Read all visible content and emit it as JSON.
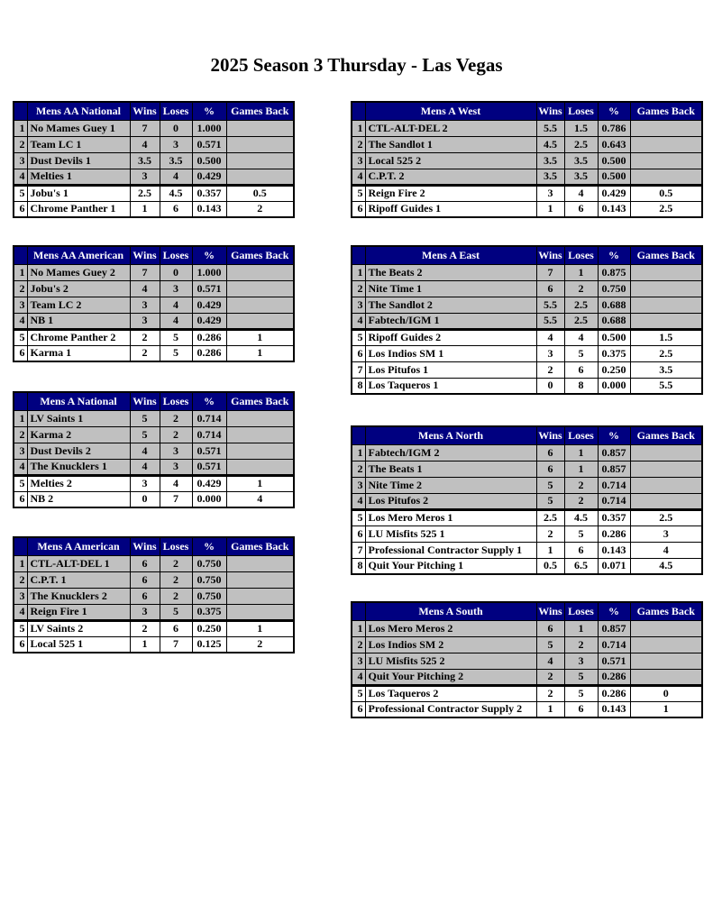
{
  "page": {
    "title": "2025 Season 3 Thursday - Las Vegas"
  },
  "colors": {
    "header_bg": "#000080",
    "header_text": "#FFFFFF",
    "shaded_row": "#C0C0C0",
    "unshaded_row": "#FFFFFF",
    "border": "#000000"
  },
  "columns": [
    "Wins",
    "Loses",
    "%",
    "Games Back"
  ],
  "tables": [
    {
      "name": "Mens AA National",
      "rows": [
        {
          "rank": 1,
          "team": "No Mames Guey 1",
          "wins": "7",
          "loses": "0",
          "pct": "1.000",
          "games_back": ""
        },
        {
          "rank": 2,
          "team": "Team LC 1",
          "wins": "4",
          "loses": "3",
          "pct": "0.571",
          "games_back": ""
        },
        {
          "rank": 3,
          "team": "Dust Devils 1",
          "wins": "3.5",
          "loses": "3.5",
          "pct": "0.500",
          "games_back": ""
        },
        {
          "rank": 4,
          "team": "Melties 1",
          "wins": "3",
          "loses": "4",
          "pct": "0.429",
          "games_back": ""
        },
        {
          "rank": 5,
          "team": "Jobu's 1",
          "wins": "2.5",
          "loses": "4.5",
          "pct": "0.357",
          "games_back": "0.5"
        },
        {
          "rank": 6,
          "team": "Chrome Panther 1",
          "wins": "1",
          "loses": "6",
          "pct": "0.143",
          "games_back": "2"
        }
      ]
    },
    {
      "name": "Mens AA American",
      "rows": [
        {
          "rank": 1,
          "team": "No Mames Guey 2",
          "wins": "7",
          "loses": "0",
          "pct": "1.000",
          "games_back": ""
        },
        {
          "rank": 2,
          "team": "Jobu's 2",
          "wins": "4",
          "loses": "3",
          "pct": "0.571",
          "games_back": ""
        },
        {
          "rank": 3,
          "team": "Team LC 2",
          "wins": "3",
          "loses": "4",
          "pct": "0.429",
          "games_back": ""
        },
        {
          "rank": 4,
          "team": "NB 1",
          "wins": "3",
          "loses": "4",
          "pct": "0.429",
          "games_back": ""
        },
        {
          "rank": 5,
          "team": "Chrome Panther 2",
          "wins": "2",
          "loses": "5",
          "pct": "0.286",
          "games_back": "1"
        },
        {
          "rank": 6,
          "team": "Karma 1",
          "wins": "2",
          "loses": "5",
          "pct": "0.286",
          "games_back": "1"
        }
      ]
    },
    {
      "name": "Mens A National",
      "rows": [
        {
          "rank": 1,
          "team": "LV Saints 1",
          "wins": "5",
          "loses": "2",
          "pct": "0.714",
          "games_back": ""
        },
        {
          "rank": 2,
          "team": "Karma 2",
          "wins": "5",
          "loses": "2",
          "pct": "0.714",
          "games_back": ""
        },
        {
          "rank": 3,
          "team": "Dust Devils 2",
          "wins": "4",
          "loses": "3",
          "pct": "0.571",
          "games_back": ""
        },
        {
          "rank": 4,
          "team": "The Knucklers 1",
          "wins": "4",
          "loses": "3",
          "pct": "0.571",
          "games_back": ""
        },
        {
          "rank": 5,
          "team": "Melties 2",
          "wins": "3",
          "loses": "4",
          "pct": "0.429",
          "games_back": "1"
        },
        {
          "rank": 6,
          "team": "NB 2",
          "wins": "0",
          "loses": "7",
          "pct": "0.000",
          "games_back": "4"
        }
      ]
    },
    {
      "name": "Mens A American",
      "rows": [
        {
          "rank": 1,
          "team": "CTL-ALT-DEL 1",
          "wins": "6",
          "loses": "2",
          "pct": "0.750",
          "games_back": ""
        },
        {
          "rank": 2,
          "team": "C.P.T. 1",
          "wins": "6",
          "loses": "2",
          "pct": "0.750",
          "games_back": ""
        },
        {
          "rank": 3,
          "team": "The Knucklers 2",
          "wins": "6",
          "loses": "2",
          "pct": "0.750",
          "games_back": ""
        },
        {
          "rank": 4,
          "team": "Reign Fire 1",
          "wins": "3",
          "loses": "5",
          "pct": "0.375",
          "games_back": ""
        },
        {
          "rank": 5,
          "team": "LV Saints 2",
          "wins": "2",
          "loses": "6",
          "pct": "0.250",
          "games_back": "1"
        },
        {
          "rank": 6,
          "team": "Local 525 1",
          "wins": "1",
          "loses": "7",
          "pct": "0.125",
          "games_back": "2"
        }
      ]
    },
    {
      "name": "Mens A West",
      "rows": [
        {
          "rank": 1,
          "team": "CTL-ALT-DEL 2",
          "wins": "5.5",
          "loses": "1.5",
          "pct": "0.786",
          "games_back": ""
        },
        {
          "rank": 2,
          "team": "The Sandlot 1",
          "wins": "4.5",
          "loses": "2.5",
          "pct": "0.643",
          "games_back": ""
        },
        {
          "rank": 3,
          "team": "Local 525 2",
          "wins": "3.5",
          "loses": "3.5",
          "pct": "0.500",
          "games_back": ""
        },
        {
          "rank": 4,
          "team": "C.P.T. 2",
          "wins": "3.5",
          "loses": "3.5",
          "pct": "0.500",
          "games_back": ""
        },
        {
          "rank": 5,
          "team": "Reign Fire 2",
          "wins": "3",
          "loses": "4",
          "pct": "0.429",
          "games_back": "0.5"
        },
        {
          "rank": 6,
          "team": "Ripoff Guides 1",
          "wins": "1",
          "loses": "6",
          "pct": "0.143",
          "games_back": "2.5"
        }
      ]
    },
    {
      "name": "Mens A East",
      "rows": [
        {
          "rank": 1,
          "team": "The Beats 2",
          "wins": "7",
          "loses": "1",
          "pct": "0.875",
          "games_back": ""
        },
        {
          "rank": 2,
          "team": "Nite Time 1",
          "wins": "6",
          "loses": "2",
          "pct": "0.750",
          "games_back": ""
        },
        {
          "rank": 3,
          "team": "The Sandlot 2",
          "wins": "5.5",
          "loses": "2.5",
          "pct": "0.688",
          "games_back": ""
        },
        {
          "rank": 4,
          "team": "Fabtech/IGM 1",
          "wins": "5.5",
          "loses": "2.5",
          "pct": "0.688",
          "games_back": ""
        },
        {
          "rank": 5,
          "team": "Ripoff Guides 2",
          "wins": "4",
          "loses": "4",
          "pct": "0.500",
          "games_back": "1.5"
        },
        {
          "rank": 6,
          "team": "Los Indios SM 1",
          "wins": "3",
          "loses": "5",
          "pct": "0.375",
          "games_back": "2.5"
        },
        {
          "rank": 7,
          "team": "Los Pitufos 1",
          "wins": "2",
          "loses": "6",
          "pct": "0.250",
          "games_back": "3.5"
        },
        {
          "rank": 8,
          "team": "Los Taqueros 1",
          "wins": "0",
          "loses": "8",
          "pct": "0.000",
          "games_back": "5.5"
        }
      ]
    },
    {
      "name": "Mens A North",
      "rows": [
        {
          "rank": 1,
          "team": "Fabtech/IGM 2",
          "wins": "6",
          "loses": "1",
          "pct": "0.857",
          "games_back": ""
        },
        {
          "rank": 2,
          "team": "The Beats 1",
          "wins": "6",
          "loses": "1",
          "pct": "0.857",
          "games_back": ""
        },
        {
          "rank": 3,
          "team": "Nite Time 2",
          "wins": "5",
          "loses": "2",
          "pct": "0.714",
          "games_back": ""
        },
        {
          "rank": 4,
          "team": "Los Pitufos 2",
          "wins": "5",
          "loses": "2",
          "pct": "0.714",
          "games_back": ""
        },
        {
          "rank": 5,
          "team": "Los Mero Meros 1",
          "wins": "2.5",
          "loses": "4.5",
          "pct": "0.357",
          "games_back": "2.5"
        },
        {
          "rank": 6,
          "team": "LU Misfits 525 1",
          "wins": "2",
          "loses": "5",
          "pct": "0.286",
          "games_back": "3"
        },
        {
          "rank": 7,
          "team": "Professional Contractor Supply 1",
          "wins": "1",
          "loses": "6",
          "pct": "0.143",
          "games_back": "4"
        },
        {
          "rank": 8,
          "team": "Quit Your Pitching 1",
          "wins": "0.5",
          "loses": "6.5",
          "pct": "0.071",
          "games_back": "4.5"
        }
      ]
    },
    {
      "name": "Mens A South",
      "rows": [
        {
          "rank": 1,
          "team": "Los Mero Meros 2",
          "wins": "6",
          "loses": "1",
          "pct": "0.857",
          "games_back": ""
        },
        {
          "rank": 2,
          "team": "Los Indios SM 2",
          "wins": "5",
          "loses": "2",
          "pct": "0.714",
          "games_back": ""
        },
        {
          "rank": 3,
          "team": "LU Misfits 525 2",
          "wins": "4",
          "loses": "3",
          "pct": "0.571",
          "games_back": ""
        },
        {
          "rank": 4,
          "team": "Quit Your Pitching 2",
          "wins": "2",
          "loses": "5",
          "pct": "0.286",
          "games_back": ""
        },
        {
          "rank": 5,
          "team": "Los Taqueros 2",
          "wins": "2",
          "loses": "5",
          "pct": "0.286",
          "games_back": "0"
        },
        {
          "rank": 6,
          "team": "Professional Contractor Supply 2",
          "wins": "1",
          "loses": "6",
          "pct": "0.143",
          "games_back": "1"
        }
      ]
    }
  ]
}
